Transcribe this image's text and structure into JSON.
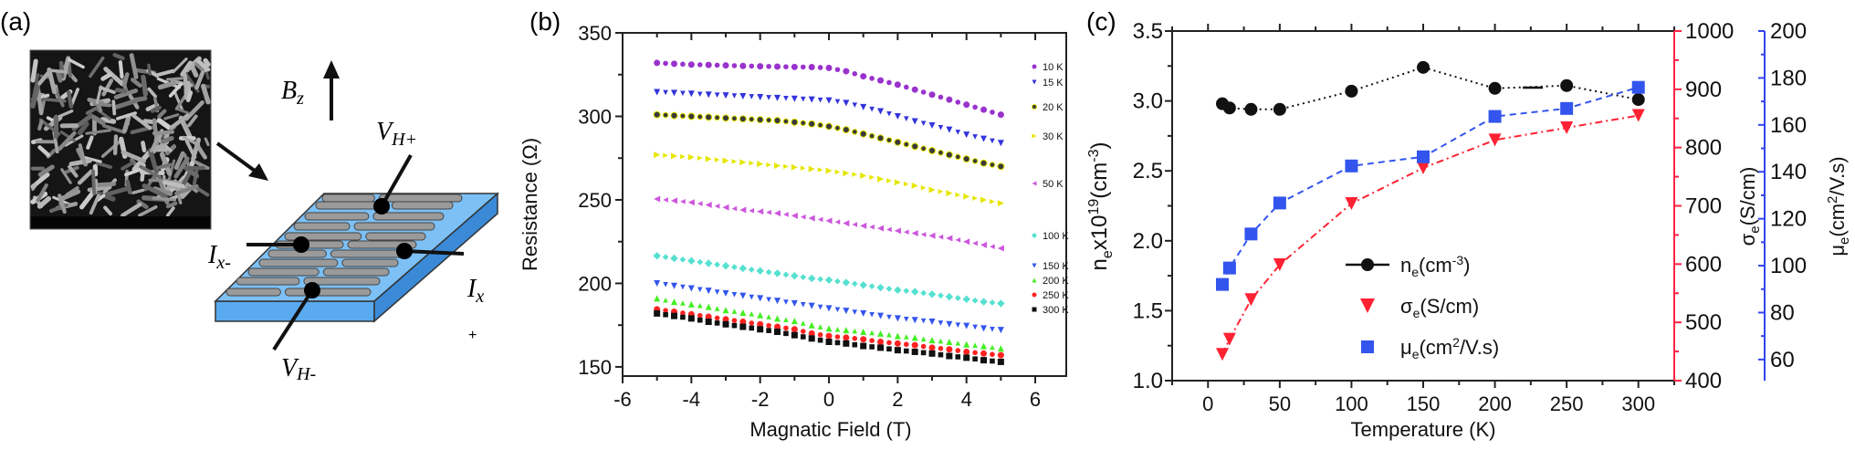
{
  "panel_a": {
    "label": "(a)",
    "field_label": "B",
    "field_sub": "z",
    "vh_plus": "V",
    "vh_plus_sub": "H+",
    "vh_minus": "V",
    "vh_minus_sub": "H-",
    "ix_minus": "I",
    "ix_minus_sub": "x-",
    "ix_plus": "I",
    "ix_plus_sub": "x",
    "ix_plus_sign": "+",
    "colors": {
      "substrate": "#5aaaf0",
      "rod": "#9a9a9a"
    }
  },
  "chart_data": [
    {
      "panel_label": "(b)",
      "type": "scatter",
      "xlabel": "Magnatic Field (T)",
      "ylabel": "Resistance (Ω)",
      "xlim": [
        -6,
        6.9
      ],
      "ylim": [
        144.5,
        350
      ],
      "xticks": [
        -6,
        -4,
        -2,
        0,
        2,
        4,
        6
      ],
      "yticks": [
        150,
        200,
        250,
        300,
        350
      ],
      "grid": false,
      "legend_placement": "right, inline labels",
      "x": [
        -5,
        -4.5,
        -4,
        -3.5,
        -3,
        -2.5,
        -2,
        -1.5,
        -1,
        -0.5,
        0,
        0.5,
        1,
        1.5,
        2,
        2.5,
        3,
        3.5,
        4,
        4.5,
        5
      ],
      "series": [
        {
          "name": "10 K",
          "color": "#9933cc",
          "marker": "circle",
          "values": [
            332,
            331.5,
            331,
            330.8,
            330.5,
            330.2,
            330,
            329.8,
            329.6,
            329.5,
            329,
            327,
            324,
            321.5,
            319,
            316,
            313,
            310,
            307,
            304,
            301
          ]
        },
        {
          "name": "15 K",
          "color": "#3333dd",
          "marker": "triangle-down",
          "values": [
            314.5,
            314,
            313.5,
            313,
            312.5,
            312,
            311.5,
            311,
            310.5,
            310,
            309.5,
            308,
            305.5,
            303,
            300,
            297,
            294.5,
            292,
            289,
            286.5,
            284
          ]
        },
        {
          "name": "20 K",
          "color": "#3a3a3a",
          "marker": "circle-yellow-edge",
          "values": [
            301,
            300.5,
            300,
            299.5,
            299,
            298.5,
            298,
            297.5,
            296.5,
            295.5,
            294,
            292,
            289.5,
            287,
            284.5,
            282,
            279.5,
            277,
            274.5,
            272,
            270
          ]
        },
        {
          "name": "30 K",
          "color": "#e6e600",
          "marker": "triangle-right",
          "values": [
            277,
            276.3,
            275.5,
            274.5,
            273.5,
            272.5,
            271.5,
            270.5,
            269.5,
            268.5,
            267.5,
            266,
            264.5,
            262.5,
            260.5,
            258.5,
            256,
            254,
            252,
            250,
            248
          ]
        },
        {
          "name": "50 K",
          "color": "#cc55dd",
          "marker": "triangle-left",
          "values": [
            250.5,
            249.5,
            248.5,
            247,
            245.5,
            244,
            243,
            242,
            240.5,
            239,
            237.5,
            236,
            234.5,
            233,
            231.5,
            230,
            228.5,
            227,
            225,
            223,
            221
          ]
        },
        {
          "name": "100 K",
          "color": "#55e0d0",
          "marker": "diamond",
          "values": [
            216.5,
            215,
            213.5,
            212,
            210.5,
            209,
            207.5,
            206,
            204.5,
            203,
            202,
            200.5,
            199,
            197.5,
            196,
            195,
            193.5,
            192,
            190.5,
            189,
            188
          ]
        },
        {
          "name": "150 K",
          "color": "#3355ee",
          "marker": "triangle-down",
          "values": [
            200,
            198.5,
            197,
            195.5,
            194,
            192.5,
            191,
            189.5,
            188,
            186.5,
            185,
            183.5,
            182,
            180.5,
            179,
            178,
            177,
            175.5,
            174.5,
            173,
            172
          ]
        },
        {
          "name": "200 K",
          "color": "#44ee22",
          "marker": "triangle-up",
          "values": [
            191,
            189,
            187.5,
            186,
            184,
            182.5,
            181,
            179,
            177.5,
            175,
            173,
            172,
            171,
            170,
            168.5,
            167.5,
            166,
            165,
            163.5,
            162.5,
            161
          ]
        },
        {
          "name": "250 K",
          "color": "#ff2222",
          "marker": "circle",
          "values": [
            184.5,
            183,
            181.5,
            180,
            178.5,
            177,
            175.5,
            174,
            172.5,
            170,
            168.5,
            167.5,
            166.5,
            165,
            164,
            163,
            161.5,
            160.5,
            159,
            158,
            157
          ]
        },
        {
          "name": "300 K",
          "color": "#111111",
          "marker": "square",
          "values": [
            182,
            180.5,
            179,
            177,
            175.5,
            174,
            172.5,
            171,
            169,
            167,
            165,
            164,
            162.5,
            161.5,
            160,
            159,
            158,
            156.5,
            155.5,
            154,
            153
          ]
        }
      ]
    },
    {
      "panel_label": "(c)",
      "type": "line",
      "xlabel": "Temperature (K)",
      "xlim": [
        -25,
        325
      ],
      "xticks": [
        0,
        50,
        100,
        150,
        200,
        250,
        300
      ],
      "grid": false,
      "legend_placement": "bottom-right",
      "x": [
        10,
        15,
        30,
        50,
        100,
        150,
        200,
        250,
        300
      ],
      "axes": {
        "left": {
          "label_parts": [
            "n",
            "e",
            "x10",
            "19",
            "(cm",
            "-3",
            ")"
          ],
          "ylim": [
            1.0,
            3.5
          ],
          "ticks": [
            "1.0",
            "1.5",
            "2.0",
            "2.5",
            "3.0",
            "3.5"
          ],
          "color": "#111111"
        },
        "right1": {
          "label_parts": [
            "σ",
            "e",
            "(S/cm)"
          ],
          "ylim": [
            400,
            1000
          ],
          "ticks": [
            400,
            500,
            600,
            700,
            800,
            900,
            1000
          ],
          "color": "#ff2244"
        },
        "right2": {
          "label_parts": [
            "μ",
            "e",
            "(cm",
            "2",
            "/V.s)"
          ],
          "ylim": [
            51,
            200
          ],
          "ticks": [
            60,
            80,
            100,
            120,
            140,
            160,
            180,
            200
          ],
          "color": "#3344ee"
        }
      },
      "series": [
        {
          "name_parts": [
            "n",
            "e",
            "(cm",
            "-3",
            ")"
          ],
          "axis": "left",
          "color": "#111111",
          "marker": "circle",
          "line": "dotted",
          "values": [
            2.98,
            2.95,
            2.94,
            2.94,
            3.07,
            3.24,
            3.09,
            3.11,
            3.01
          ]
        },
        {
          "name_parts": [
            "σ",
            "e",
            "(S/cm)"
          ],
          "axis": "right1",
          "color": "#ff2233",
          "marker": "triangle-down",
          "line": "dash-dot",
          "values": [
            445,
            471,
            539,
            599,
            704,
            765,
            813,
            834,
            855
          ]
        },
        {
          "name_parts": [
            "μ",
            "e",
            "(cm",
            "2",
            "/V.s)"
          ],
          "axis": "right2",
          "color": "#3355ee",
          "marker": "square",
          "line": "dashed",
          "values": [
            92,
            99,
            113.5,
            126.7,
            142.5,
            146.4,
            163.6,
            167,
            176
          ]
        }
      ]
    }
  ]
}
